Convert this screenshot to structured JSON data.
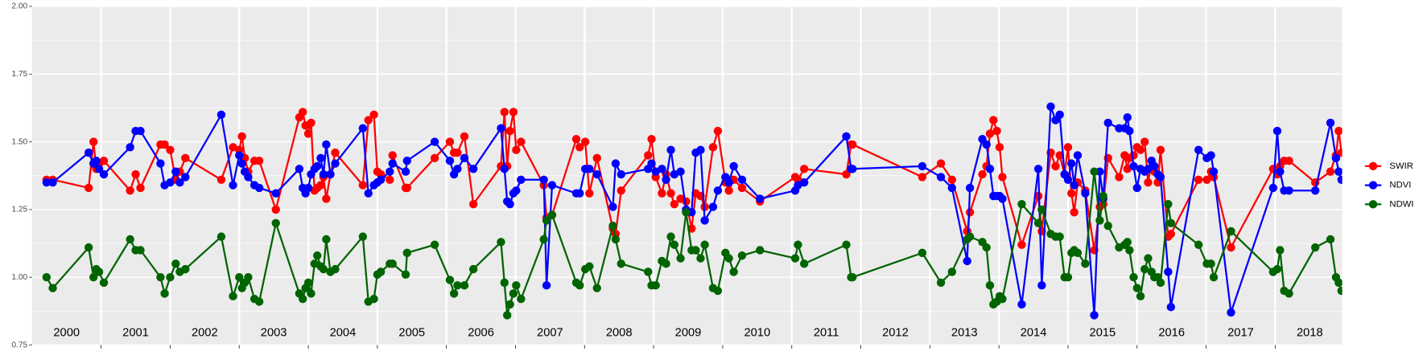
{
  "chart_data": {
    "type": "line",
    "x": [
      2000.21,
      2000.3,
      2000.82,
      2000.89,
      2000.93,
      2000.97,
      2001.04,
      2001.42,
      2001.5,
      2001.57,
      2001.86,
      2001.92,
      2002.0,
      2002.08,
      2002.14,
      2002.22,
      2002.74,
      2002.91,
      2003.0,
      2003.04,
      2003.08,
      2003.13,
      2003.22,
      2003.29,
      2003.53,
      2003.87,
      2003.92,
      2003.96,
      2004.0,
      2004.04,
      2004.09,
      2004.13,
      2004.18,
      2004.22,
      2004.26,
      2004.32,
      2004.39,
      2004.79,
      2004.87,
      2004.95,
      2005.0,
      2005.05,
      2005.18,
      2005.22,
      2005.41,
      2005.43,
      2005.83,
      2006.05,
      2006.11,
      2006.16,
      2006.26,
      2006.39,
      2006.79,
      2006.84,
      2006.88,
      2006.92,
      2006.97,
      2007.01,
      2007.08,
      2007.41,
      2007.45,
      2007.53,
      2007.88,
      2007.93,
      2008.01,
      2008.07,
      2008.18,
      2008.41,
      2008.45,
      2008.53,
      2008.92,
      2008.97,
      2009.03,
      2009.12,
      2009.18,
      2009.25,
      2009.3,
      2009.39,
      2009.47,
      2009.55,
      2009.61,
      2009.68,
      2009.74,
      2009.86,
      2009.93,
      2010.04,
      2010.09,
      2010.16,
      2010.28,
      2010.54,
      2011.05,
      2011.09,
      2011.18,
      2011.79,
      2011.86,
      2011.88,
      2012.89,
      2013.16,
      2013.32,
      2013.54,
      2013.58,
      2013.76,
      2013.82,
      2013.87,
      2013.92,
      2013.97,
      2014.01,
      2014.05,
      2014.33,
      2014.57,
      2014.62,
      2014.75,
      2014.82,
      2014.88,
      2014.95,
      2015.0,
      2015.05,
      2015.09,
      2015.14,
      2015.25,
      2015.38,
      2015.46,
      2015.51,
      2015.58,
      2015.74,
      2015.82,
      2015.86,
      2015.89,
      2015.95,
      2016.0,
      2016.05,
      2016.11,
      2016.16,
      2016.21,
      2016.25,
      2016.3,
      2016.34,
      2016.45,
      2016.49,
      2016.89,
      2017.01,
      2017.07,
      2017.11,
      2017.36,
      2017.97,
      2018.03,
      2018.07,
      2018.13,
      2018.2,
      2018.58,
      2018.8,
      2018.88,
      2018.92,
      2018.96
    ],
    "series": [
      {
        "name": "SWIR",
        "color": "#ff0000",
        "values": [
          1.36,
          1.36,
          1.33,
          1.5,
          1.4,
          1.42,
          1.43,
          1.32,
          1.38,
          1.33,
          1.49,
          1.49,
          1.47,
          1.36,
          1.39,
          1.44,
          1.36,
          1.48,
          1.47,
          1.52,
          1.44,
          1.39,
          1.43,
          1.43,
          1.25,
          1.59,
          1.61,
          1.56,
          1.53,
          1.57,
          1.32,
          1.33,
          1.34,
          1.37,
          1.29,
          1.38,
          1.46,
          1.34,
          1.58,
          1.6,
          1.39,
          1.38,
          1.36,
          1.45,
          1.33,
          1.33,
          1.44,
          1.5,
          1.46,
          1.46,
          1.52,
          1.27,
          1.41,
          1.61,
          1.41,
          1.54,
          1.61,
          1.47,
          1.5,
          1.34,
          1.22,
          1.23,
          1.51,
          1.48,
          1.5,
          1.31,
          1.44,
          1.18,
          1.16,
          1.32,
          1.45,
          1.51,
          1.37,
          1.31,
          1.38,
          1.31,
          1.27,
          1.29,
          1.28,
          1.18,
          1.31,
          1.3,
          1.26,
          1.48,
          1.54,
          1.35,
          1.32,
          1.36,
          1.33,
          1.28,
          1.37,
          1.36,
          1.4,
          1.38,
          1.49,
          1.49,
          1.37,
          1.42,
          1.36,
          1.17,
          1.24,
          1.38,
          1.41,
          1.53,
          1.58,
          1.54,
          1.48,
          1.37,
          1.12,
          1.3,
          1.17,
          1.46,
          1.41,
          1.45,
          1.38,
          1.48,
          1.31,
          1.24,
          1.35,
          1.32,
          1.1,
          1.26,
          1.27,
          1.44,
          1.37,
          1.45,
          1.4,
          1.44,
          1.45,
          1.48,
          1.47,
          1.5,
          1.35,
          1.43,
          1.39,
          1.35,
          1.47,
          1.15,
          1.16,
          1.36,
          1.36,
          1.39,
          1.37,
          1.11,
          1.4,
          1.38,
          1.41,
          1.43,
          1.43,
          1.35,
          1.39,
          1.45,
          1.54,
          1.46
        ]
      },
      {
        "name": "NDVI",
        "color": "#0000ff",
        "values": [
          1.35,
          1.35,
          1.46,
          1.42,
          1.43,
          1.4,
          1.38,
          1.48,
          1.54,
          1.54,
          1.42,
          1.34,
          1.35,
          1.39,
          1.35,
          1.37,
          1.6,
          1.34,
          1.45,
          1.42,
          1.39,
          1.37,
          1.34,
          1.33,
          1.31,
          1.4,
          1.33,
          1.31,
          1.33,
          1.38,
          1.4,
          1.41,
          1.44,
          1.38,
          1.49,
          1.38,
          1.42,
          1.55,
          1.31,
          1.34,
          1.35,
          1.36,
          1.39,
          1.42,
          1.39,
          1.43,
          1.5,
          1.43,
          1.38,
          1.4,
          1.44,
          1.4,
          1.55,
          1.4,
          1.28,
          1.27,
          1.31,
          1.32,
          1.36,
          1.36,
          0.97,
          1.34,
          1.31,
          1.31,
          1.4,
          1.4,
          1.38,
          1.26,
          1.42,
          1.38,
          1.4,
          1.42,
          1.39,
          1.4,
          1.36,
          1.47,
          1.38,
          1.39,
          1.25,
          1.24,
          1.46,
          1.47,
          1.21,
          1.26,
          1.32,
          1.37,
          1.35,
          1.41,
          1.36,
          1.29,
          1.32,
          1.34,
          1.35,
          1.52,
          1.4,
          1.4,
          1.41,
          1.37,
          1.33,
          1.06,
          1.33,
          1.51,
          1.49,
          1.4,
          1.3,
          1.3,
          1.3,
          1.29,
          0.9,
          1.4,
          0.97,
          1.63,
          1.58,
          1.6,
          1.38,
          1.36,
          1.42,
          1.34,
          1.45,
          1.31,
          0.86,
          1.39,
          1.29,
          1.57,
          1.55,
          1.55,
          1.59,
          1.54,
          1.41,
          1.33,
          1.4,
          1.39,
          1.4,
          1.43,
          1.41,
          1.38,
          1.37,
          1.02,
          0.89,
          1.47,
          1.44,
          1.45,
          1.39,
          0.87,
          1.33,
          1.54,
          1.39,
          1.32,
          1.32,
          1.32,
          1.57,
          1.44,
          1.39,
          1.36
        ]
      },
      {
        "name": "NDWI",
        "color": "#006400",
        "values": [
          1.0,
          0.96,
          1.11,
          1.0,
          1.03,
          1.02,
          0.98,
          1.14,
          1.1,
          1.1,
          1.0,
          0.94,
          1.0,
          1.05,
          1.02,
          1.03,
          1.15,
          0.93,
          1.0,
          0.96,
          0.98,
          1.0,
          0.92,
          0.91,
          1.2,
          0.94,
          0.92,
          0.96,
          0.98,
          0.94,
          1.05,
          1.08,
          1.04,
          1.03,
          1.14,
          1.02,
          1.03,
          1.15,
          0.91,
          0.92,
          1.01,
          1.02,
          1.05,
          1.05,
          1.01,
          1.09,
          1.12,
          0.99,
          0.94,
          0.97,
          0.97,
          1.03,
          1.13,
          0.98,
          0.86,
          0.9,
          0.94,
          0.97,
          0.92,
          1.14,
          1.21,
          1.23,
          0.98,
          0.97,
          1.03,
          1.04,
          0.96,
          1.19,
          1.14,
          1.05,
          1.02,
          0.97,
          0.97,
          1.06,
          1.05,
          1.15,
          1.12,
          1.07,
          1.24,
          1.1,
          1.1,
          1.07,
          1.12,
          0.96,
          0.95,
          1.09,
          1.07,
          1.02,
          1.08,
          1.1,
          1.07,
          1.12,
          1.05,
          1.12,
          1.0,
          1.0,
          1.09,
          0.98,
          1.02,
          1.14,
          1.15,
          1.13,
          1.11,
          0.97,
          0.9,
          0.91,
          0.93,
          0.92,
          1.27,
          1.2,
          1.25,
          1.16,
          1.15,
          1.15,
          1.0,
          1.0,
          1.09,
          1.1,
          1.09,
          1.05,
          1.39,
          1.21,
          1.3,
          1.19,
          1.11,
          1.12,
          1.13,
          1.1,
          1.0,
          0.96,
          0.93,
          1.03,
          1.07,
          1.02,
          1.0,
          1.0,
          0.98,
          1.27,
          1.2,
          1.12,
          1.05,
          1.05,
          1.0,
          1.17,
          1.02,
          1.03,
          1.1,
          0.95,
          0.94,
          1.11,
          1.14,
          1.0,
          0.98,
          0.95
        ]
      }
    ],
    "xlim": [
      2000,
      2018.97
    ],
    "xticks": [
      {
        "value": 2000.5,
        "label": "2000"
      },
      {
        "value": 2001.5,
        "label": "2001"
      },
      {
        "value": 2002.5,
        "label": "2002"
      },
      {
        "value": 2003.5,
        "label": "2003"
      },
      {
        "value": 2004.5,
        "label": "2004"
      },
      {
        "value": 2005.5,
        "label": "2005"
      },
      {
        "value": 2006.5,
        "label": "2006"
      },
      {
        "value": 2007.5,
        "label": "2007"
      },
      {
        "value": 2008.5,
        "label": "2008"
      },
      {
        "value": 2009.5,
        "label": "2009"
      },
      {
        "value": 2010.5,
        "label": "2010"
      },
      {
        "value": 2011.5,
        "label": "2011"
      },
      {
        "value": 2012.5,
        "label": "2012"
      },
      {
        "value": 2013.5,
        "label": "2013"
      },
      {
        "value": 2014.5,
        "label": "2014"
      },
      {
        "value": 2015.5,
        "label": "2015"
      },
      {
        "value": 2016.5,
        "label": "2016"
      },
      {
        "value": 2017.5,
        "label": "2017"
      },
      {
        "value": 2018.5,
        "label": "2018"
      }
    ],
    "ylim": [
      0.75,
      2
    ],
    "yticks": [
      {
        "value": 0.75,
        "label": "0.75"
      },
      {
        "value": 1,
        "label": "1.00"
      },
      {
        "value": 1.25,
        "label": "1.25"
      },
      {
        "value": 1.5,
        "label": "1.50"
      },
      {
        "value": 1.75,
        "label": "1.75"
      },
      {
        "value": 2,
        "label": "2.00"
      }
    ],
    "grid": true,
    "legend": "right"
  }
}
